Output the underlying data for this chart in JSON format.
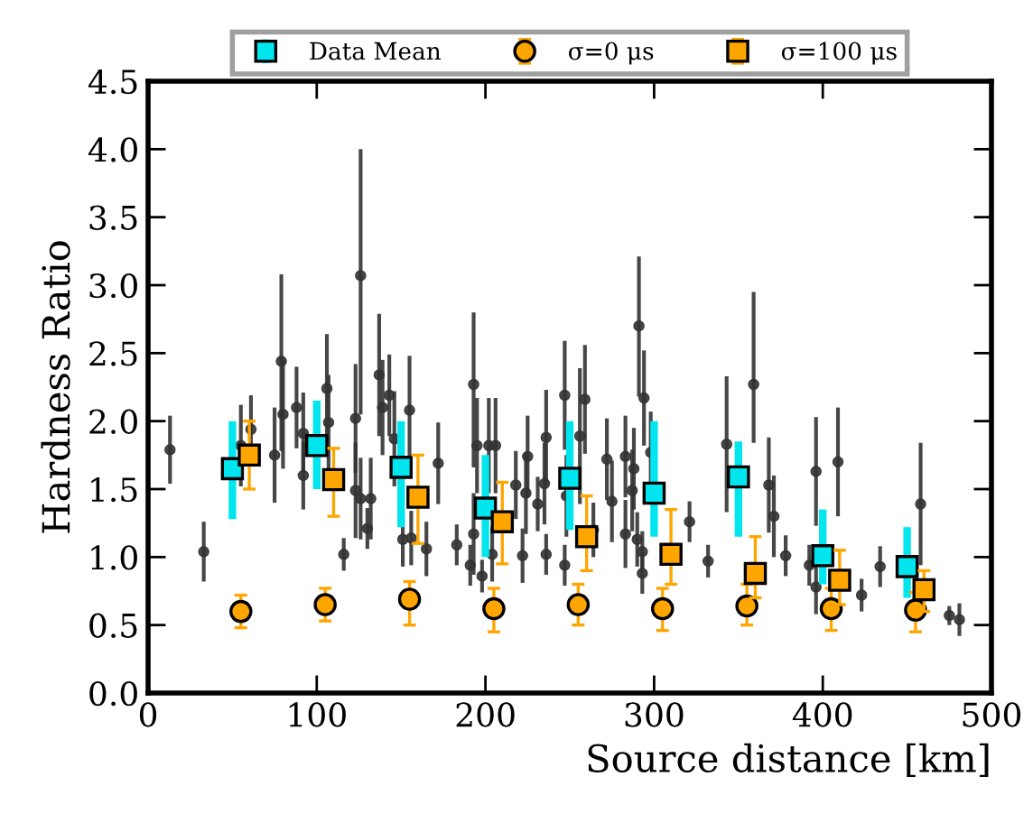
{
  "chart_data": {
    "type": "scatter",
    "xlabel": "Source distance [km]",
    "ylabel": "Hardness Ratio",
    "xlim": [
      0,
      500
    ],
    "ylim": [
      0,
      4.5
    ],
    "xticks": [
      0,
      100,
      200,
      300,
      400,
      500
    ],
    "yticks": [
      {
        "value": 0,
        "label": "0.0"
      },
      {
        "value": 0.5,
        "label": "0.5"
      },
      {
        "value": 1,
        "label": "1.0"
      },
      {
        "value": 1.5,
        "label": "1.5"
      },
      {
        "value": 2,
        "label": "2.0"
      },
      {
        "value": 2.5,
        "label": "2.5"
      },
      {
        "value": 3,
        "label": "3.0"
      },
      {
        "value": 3.5,
        "label": "3.5"
      },
      {
        "value": 4,
        "label": "4.0"
      },
      {
        "value": 4.5,
        "label": "4.5"
      }
    ],
    "grid": false,
    "legend": "top",
    "series": [
      {
        "color": "#333333",
        "marker": "circle",
        "x": [
          13,
          33,
          55,
          61,
          75,
          79,
          80,
          88,
          92,
          92,
          106,
          107,
          116,
          123,
          126,
          123,
          126,
          130,
          132,
          137,
          139,
          143,
          146,
          151,
          155,
          156,
          165,
          172,
          183,
          191,
          193,
          193,
          195,
          198,
          202,
          204,
          206,
          218,
          222,
          224,
          225,
          231,
          235,
          236,
          236,
          247,
          247,
          248,
          256,
          259,
          264,
          272,
          275,
          283,
          283,
          287,
          288,
          290,
          291,
          293,
          293,
          294,
          298,
          321,
          332,
          343,
          359,
          368,
          371,
          378,
          392,
          396,
          396,
          409,
          423,
          434,
          458,
          475,
          481
        ],
        "values": [
          1.79,
          1.04,
          1.82,
          1.94,
          1.75,
          2.44,
          2.05,
          2.1,
          1.91,
          1.6,
          2.24,
          1.99,
          1.02,
          2.02,
          3.07,
          1.49,
          1.43,
          1.21,
          1.43,
          2.34,
          2.1,
          2.19,
          1.87,
          1.13,
          2.08,
          1.14,
          1.06,
          1.69,
          1.09,
          0.94,
          2.27,
          1.17,
          1.82,
          0.86,
          1.82,
          1.02,
          1.82,
          1.53,
          1.01,
          1.47,
          1.74,
          1.39,
          1.54,
          1.88,
          1.02,
          2.19,
          0.94,
          1.45,
          1.89,
          2.16,
          1.2,
          1.72,
          1.41,
          1.74,
          1.17,
          1.49,
          1.65,
          1.13,
          2.7,
          1.04,
          0.88,
          2.17,
          1.77,
          1.26,
          0.97,
          1.83,
          2.27,
          1.53,
          1.3,
          1.01,
          0.94,
          1.63,
          0.78,
          1.7,
          0.72,
          0.93,
          1.39,
          0.57,
          0.54
        ],
        "errors": [
          0.25,
          0.22,
          0.3,
          0.25,
          0.35,
          [
            1.78,
            3.08
          ],
          0.4,
          0.3,
          0.3,
          0.25,
          0.4,
          0.35,
          0.12,
          0.4,
          [
            2.05,
            4.0
          ],
          0.35,
          0.3,
          0.15,
          0.3,
          0.45,
          0.35,
          0.3,
          0.35,
          0.2,
          0.4,
          0.2,
          0.2,
          0.3,
          0.15,
          0.15,
          [
            1.66,
            2.8
          ],
          0.3,
          0.35,
          0.12,
          0.35,
          0.2,
          0.35,
          0.25,
          0.2,
          0.3,
          0.3,
          0.2,
          0.3,
          0.35,
          0.15,
          0.4,
          0.15,
          0.3,
          0.5,
          0.4,
          0.2,
          0.3,
          0.3,
          0.3,
          0.25,
          0.3,
          0.3,
          0.2,
          [
            2.18,
            3.21
          ],
          0.15,
          0.15,
          0.35,
          0.3,
          0.15,
          0.12,
          0.5,
          [
            1.84,
            2.95
          ],
          0.35,
          0.3,
          0.15,
          0.15,
          0.4,
          0.2,
          0.4,
          0.12,
          0.15,
          0.45,
          0.07,
          0.12
        ]
      },
      {
        "name": "Data Mean",
        "color": "#00e5ee",
        "marker": "square",
        "x": [
          50,
          100,
          150,
          200,
          250,
          300,
          350,
          400,
          450
        ],
        "values": [
          1.65,
          1.82,
          1.66,
          1.36,
          1.58,
          1.47,
          1.59,
          1.01,
          0.93
        ],
        "errors": [
          [
            1.28,
            2.0
          ],
          [
            1.5,
            2.15
          ],
          [
            1.22,
            2.0
          ],
          [
            1.0,
            1.75
          ],
          [
            1.2,
            2.0
          ],
          [
            1.15,
            2.0
          ],
          [
            1.15,
            1.85
          ],
          [
            0.8,
            1.35
          ],
          [
            0.7,
            1.22
          ]
        ]
      },
      {
        "name": "σ=0 μs",
        "color": "#ffa500",
        "marker": "circle",
        "x": [
          55,
          105,
          155,
          205,
          255,
          305,
          355,
          405,
          455
        ],
        "values": [
          0.6,
          0.65,
          0.69,
          0.62,
          0.65,
          0.62,
          0.64,
          0.62,
          0.61
        ],
        "errors": [
          [
            0.48,
            0.72
          ],
          [
            0.53,
            0.77
          ],
          [
            0.5,
            0.82
          ],
          [
            0.45,
            0.77
          ],
          [
            0.5,
            0.8
          ],
          [
            0.46,
            0.77
          ],
          [
            0.5,
            0.8
          ],
          [
            0.46,
            0.77
          ],
          [
            0.45,
            0.74
          ]
        ]
      },
      {
        "name": "σ=100 μs",
        "color": "#ffa500",
        "marker": "square",
        "x": [
          60,
          110,
          160,
          210,
          260,
          310,
          360,
          410,
          460
        ],
        "values": [
          1.75,
          1.57,
          1.44,
          1.26,
          1.15,
          1.02,
          0.88,
          0.83,
          0.76
        ],
        "errors": [
          [
            1.5,
            2.0
          ],
          [
            1.3,
            1.8
          ],
          [
            1.1,
            1.75
          ],
          [
            0.95,
            1.55
          ],
          [
            0.9,
            1.45
          ],
          [
            0.8,
            1.35
          ],
          [
            0.7,
            1.15
          ],
          [
            0.65,
            1.05
          ],
          [
            0.6,
            0.9
          ]
        ]
      }
    ]
  }
}
